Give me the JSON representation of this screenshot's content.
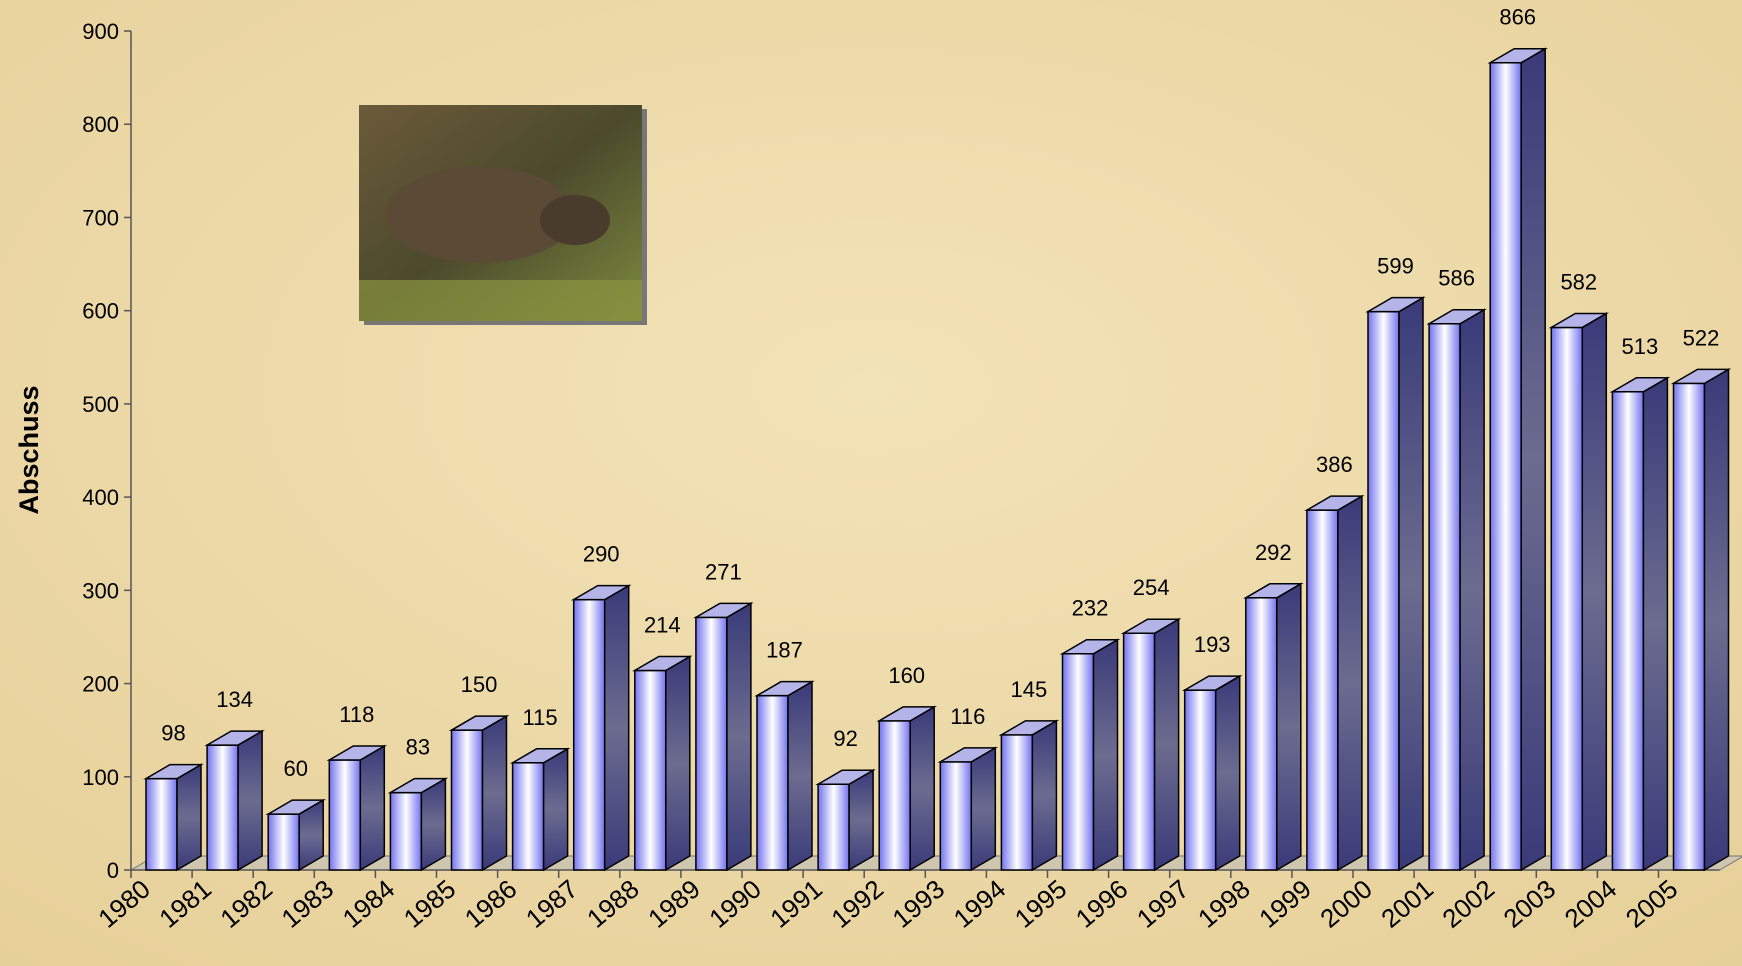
{
  "chart_data": {
    "type": "bar3d",
    "y_label": "Abschuss",
    "categories": [
      "1980",
      "1981",
      "1982",
      "1983",
      "1984",
      "1985",
      "1986",
      "1987",
      "1988",
      "1989",
      "1990",
      "1991",
      "1992",
      "1993",
      "1994",
      "1995",
      "1996",
      "1997",
      "1998",
      "1999",
      "2000",
      "2001",
      "2002",
      "2003",
      "2004",
      "2005"
    ],
    "values": [
      98,
      134,
      60,
      118,
      83,
      150,
      115,
      290,
      214,
      271,
      187,
      92,
      160,
      116,
      145,
      232,
      254,
      193,
      292,
      386,
      599,
      586,
      866,
      582,
      513,
      522
    ],
    "color": "#7b7bf5",
    "ylim": [
      0,
      900
    ],
    "yticks": [
      0,
      100,
      200,
      300,
      400,
      500,
      600,
      700,
      800,
      900
    ]
  }
}
